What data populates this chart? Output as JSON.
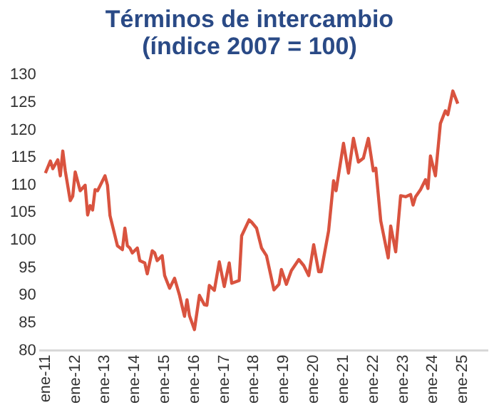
{
  "chart_data": {
    "type": "line",
    "title": "Términos de intercambio (índice 2007 = 100)",
    "x": [
      "2011-01",
      "2011-03",
      "2011-04",
      "2011-06",
      "2011-07",
      "2011-08",
      "2011-09",
      "2011-11",
      "2011-12",
      "2012-01",
      "2012-03",
      "2012-05",
      "2012-06",
      "2012-07",
      "2012-08",
      "2012-09",
      "2012-10",
      "2013-01",
      "2013-02",
      "2013-03",
      "2013-06",
      "2013-08",
      "2013-09",
      "2013-10",
      "2013-11",
      "2013-12",
      "2014-02",
      "2014-03",
      "2014-05",
      "2014-06",
      "2014-08",
      "2014-09",
      "2014-10",
      "2014-12",
      "2015-01",
      "2015-03",
      "2015-05",
      "2015-07",
      "2015-09",
      "2015-10",
      "2015-11",
      "2016-01",
      "2016-03",
      "2016-05",
      "2016-06",
      "2016-07",
      "2016-09",
      "2016-11",
      "2017-01",
      "2017-03",
      "2017-04",
      "2017-07",
      "2017-08",
      "2017-11",
      "2017-12",
      "2018-02",
      "2018-04",
      "2018-06",
      "2018-09",
      "2018-11",
      "2018-12",
      "2019-02",
      "2019-04",
      "2019-07",
      "2019-09",
      "2019-11",
      "2020-01",
      "2020-03",
      "2020-04",
      "2020-07",
      "2020-09",
      "2020-10",
      "2021-01",
      "2021-03",
      "2021-05",
      "2021-07",
      "2021-09",
      "2021-11",
      "2022-01",
      "2022-02",
      "2022-04",
      "2022-07",
      "2022-08",
      "2022-10",
      "2022-12",
      "2023-02",
      "2023-04",
      "2023-05",
      "2023-06",
      "2023-08",
      "2023-10",
      "2023-11",
      "2023-12",
      "2024-02",
      "2024-04",
      "2024-06",
      "2024-07",
      "2024-09",
      "2024-11"
    ],
    "series": [
      {
        "color": "#d9533f",
        "values": [
          112.2,
          114.4,
          113,
          114.6,
          111.7,
          116.2,
          112.6,
          107.2,
          108,
          112.4,
          109,
          110,
          104.6,
          106.3,
          105.5,
          109.2,
          109,
          111.7,
          110,
          104.5,
          99,
          98.3,
          102.2,
          99,
          98.6,
          97.7,
          98.6,
          96.3,
          95.9,
          93.9,
          98.1,
          97.7,
          96.3,
          97.2,
          93.6,
          91.3,
          93.1,
          90,
          86.2,
          89.2,
          86.3,
          83.8,
          90,
          88.3,
          88.2,
          91.8,
          90.9,
          96.1,
          91.6,
          95.9,
          92.2,
          92.7,
          100.8,
          103.7,
          103.3,
          102.2,
          98.6,
          97.2,
          91,
          92,
          94.7,
          92,
          94.5,
          96.5,
          95.4,
          93.6,
          99.2,
          94.3,
          94.3,
          101.7,
          110.8,
          109,
          117.6,
          112.2,
          118.5,
          114.2,
          114.9,
          118.5,
          112.6,
          113.1,
          103.5,
          96.8,
          102.6,
          97.9,
          108.1,
          107.9,
          108.3,
          106.4,
          107.9,
          109.2,
          111,
          109.4,
          115.3,
          111.7,
          121.2,
          123.5,
          122.8,
          127.1,
          124.8
        ]
      }
    ],
    "xlim": [
      "2010-11",
      "2025-11"
    ],
    "xticks": [
      {
        "value": "2011-01",
        "label": "ene-11"
      },
      {
        "value": "2012-01",
        "label": "ene-12"
      },
      {
        "value": "2013-01",
        "label": "ene-13"
      },
      {
        "value": "2014-01",
        "label": "ene-14"
      },
      {
        "value": "2015-01",
        "label": "ene-15"
      },
      {
        "value": "2016-01",
        "label": "ene-16"
      },
      {
        "value": "2017-01",
        "label": "ene-17"
      },
      {
        "value": "2018-01",
        "label": "ene-18"
      },
      {
        "value": "2019-01",
        "label": "ene-19"
      },
      {
        "value": "2020-01",
        "label": "ene-20"
      },
      {
        "value": "2021-01",
        "label": "ene-21"
      },
      {
        "value": "2022-01",
        "label": "ene-22"
      },
      {
        "value": "2023-01",
        "label": "ene-23"
      },
      {
        "value": "2024-01",
        "label": "ene-24"
      },
      {
        "value": "2025-01",
        "label": "ene-25"
      }
    ],
    "ylim": [
      80,
      130
    ],
    "yticks": [
      80,
      85,
      90,
      95,
      100,
      105,
      110,
      115,
      120,
      125,
      130
    ],
    "grid": false,
    "legend": false,
    "marker": "none",
    "line_style": "solid"
  }
}
